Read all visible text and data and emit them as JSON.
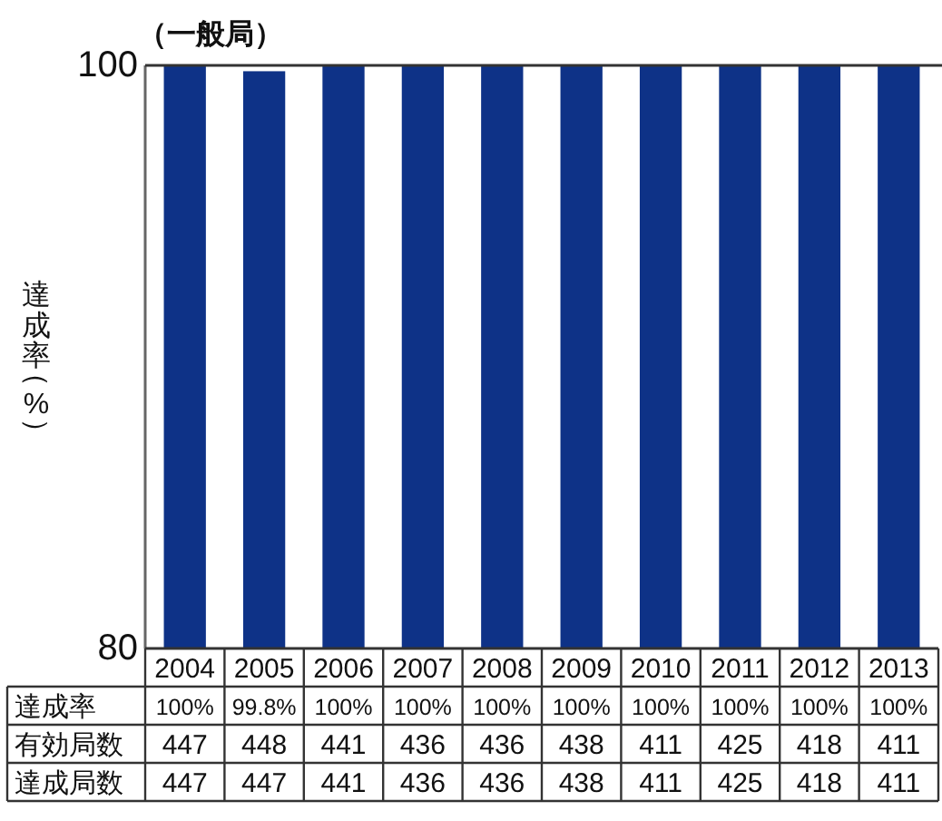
{
  "chart_data": {
    "type": "bar",
    "title": "（一般局）",
    "ylabel": "達成率（%）",
    "categories": [
      "2004",
      "2005",
      "2006",
      "2007",
      "2008",
      "2009",
      "2010",
      "2011",
      "2012",
      "2013"
    ],
    "series": [
      {
        "name": "達成率",
        "color": "#0e3287",
        "values": [
          100,
          99.8,
          100,
          100,
          100,
          100,
          100,
          100,
          100,
          100
        ],
        "value_labels": [
          "100%",
          "99.8%",
          "100%",
          "100%",
          "100%",
          "100%",
          "100%",
          "100%",
          "100%",
          "100%"
        ]
      }
    ],
    "ylim": [
      80,
      100
    ],
    "yticks": [
      80,
      100
    ],
    "annotations": [
      "有効局数",
      "447",
      "448",
      "441",
      "436",
      "436",
      "438",
      "411",
      "425",
      "418",
      "411",
      "達成局数",
      "447",
      "447",
      "441",
      "436",
      "436",
      "438",
      "411",
      "425",
      "418",
      "411"
    ]
  }
}
